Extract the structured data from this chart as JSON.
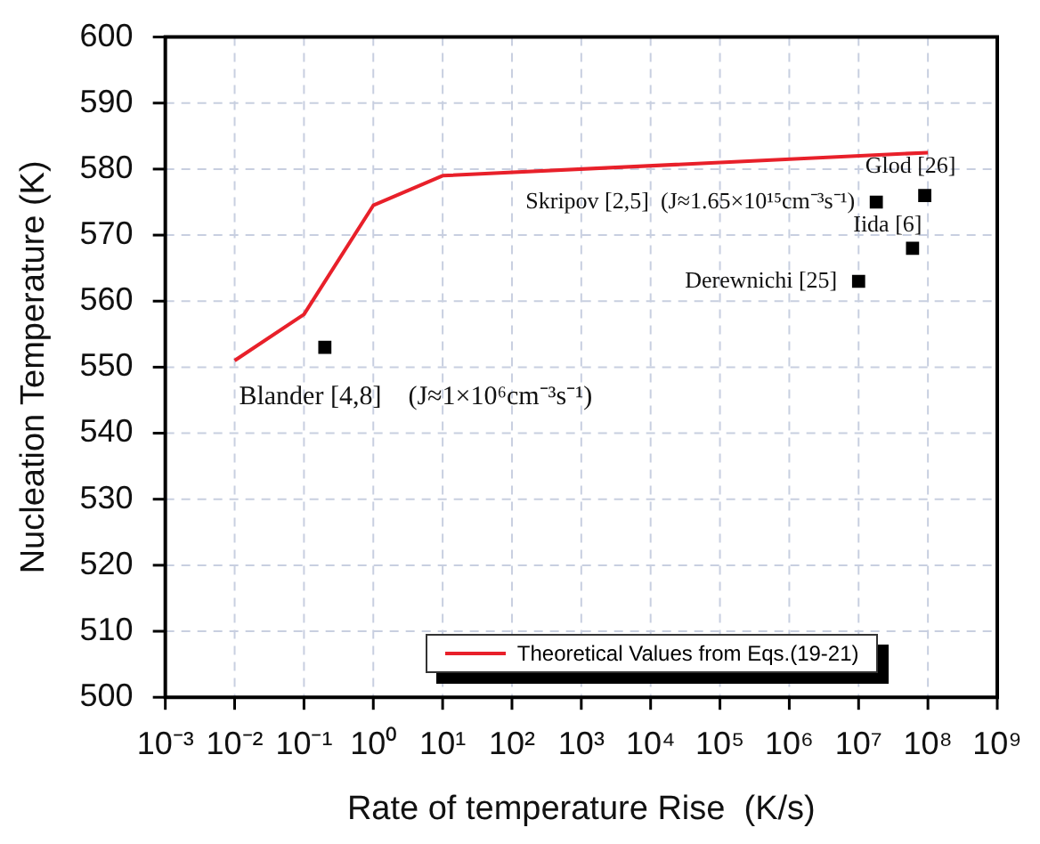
{
  "chart_data": {
    "type": "line",
    "xlabel": "Rate of temperature Rise  (K/s)",
    "ylabel": "Nucleation Temperature (K)",
    "log": "x",
    "grid": true,
    "legend": "bottom",
    "xlim": [
      0.001,
      1000000000
    ],
    "ylim": [
      500,
      600
    ],
    "xticks": [
      {
        "value": 0.001,
        "label": "10⁻³"
      },
      {
        "value": 0.01,
        "label": "10⁻²"
      },
      {
        "value": 0.1,
        "label": "10⁻¹"
      },
      {
        "value": 1,
        "label": "10⁰"
      },
      {
        "value": 10,
        "label": "10¹"
      },
      {
        "value": 100,
        "label": "10²"
      },
      {
        "value": 1000,
        "label": "10³"
      },
      {
        "value": 10000,
        "label": "10⁴"
      },
      {
        "value": 100000,
        "label": "10⁵"
      },
      {
        "value": 1000000,
        "label": "10⁶"
      },
      {
        "value": 10000000,
        "label": "10⁷"
      },
      {
        "value": 100000000,
        "label": "10⁸"
      },
      {
        "value": 1000000000,
        "label": "10⁹"
      }
    ],
    "yticks": [
      500,
      510,
      520,
      530,
      540,
      550,
      560,
      570,
      580,
      590,
      600
    ],
    "series": [
      {
        "name": "Theoretical Values from Eqs.(19-21)",
        "color": "#e8202a",
        "marker": "none",
        "line_style": "solid",
        "x": [
          0.01,
          0.1,
          1,
          10,
          100000000
        ],
        "values": [
          551,
          558,
          574.5,
          579,
          582.5
        ]
      },
      {
        "type": "scatter",
        "color": "#000000",
        "marker": "square",
        "x": [
          0.2,
          10000000,
          18000000,
          60000000,
          90000000
        ],
        "values": [
          553,
          563,
          575,
          568,
          576
        ]
      }
    ],
    "annotations": [
      {
        "text": "Blander [4,8]    (J≈1×10⁶cm⁻³s⁻¹)",
        "x": 0.2,
        "y": 553
      },
      {
        "text": "Derewnichi [25]",
        "x": 10000000,
        "y": 563
      },
      {
        "text": "Skripov [2,5]  (J≈1.65×10¹⁵cm⁻³s⁻¹)",
        "x": 18000000,
        "y": 575
      },
      {
        "text": "Iida [6]",
        "x": 60000000,
        "y": 568
      },
      {
        "text": "Glod [26]",
        "x": 90000000,
        "y": 576
      }
    ]
  }
}
